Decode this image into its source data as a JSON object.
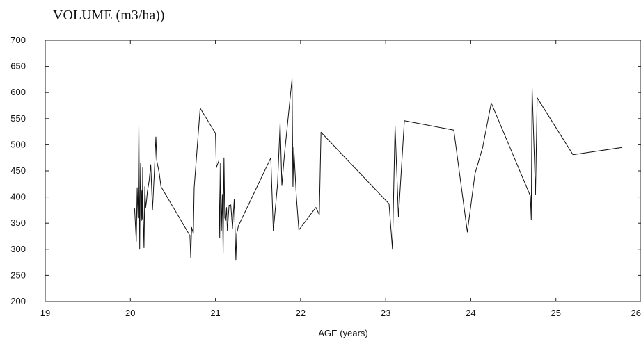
{
  "chart_data": {
    "type": "line",
    "ylabel": "VOLUME  (m3/ha))",
    "xlabel": "AGE (years)",
    "xlim": [
      19,
      26
    ],
    "ylim": [
      200,
      700
    ],
    "xticks": [
      19,
      20,
      21,
      22,
      23,
      24,
      25,
      26
    ],
    "yticks": [
      200,
      250,
      300,
      350,
      400,
      450,
      500,
      550,
      600,
      650,
      700
    ],
    "xtick_labels": [
      "19",
      "20",
      "21",
      "22",
      "23",
      "24",
      "25",
      "26"
    ],
    "ytick_labels": [
      "200",
      "250",
      "300",
      "350",
      "400",
      "450",
      "500",
      "550",
      "600",
      "650",
      "700"
    ],
    "grid": false,
    "series": [
      {
        "color": "#111111",
        "x": [
          20.05,
          20.07,
          20.08,
          20.09,
          20.1,
          20.11,
          20.115,
          20.12,
          20.13,
          20.135,
          20.14,
          20.145,
          20.15,
          20.16,
          20.17,
          20.18,
          20.19,
          20.2,
          20.22,
          20.24,
          20.26,
          20.28,
          20.3,
          20.31,
          20.32,
          20.34,
          20.36,
          20.7,
          20.71,
          20.72,
          20.74,
          20.75,
          20.82,
          21.0,
          21.01,
          21.04,
          21.05,
          21.06,
          21.07,
          21.08,
          21.09,
          21.1,
          21.11,
          21.12,
          21.13,
          21.14,
          21.16,
          21.18,
          21.2,
          21.22,
          21.23,
          21.24,
          21.25,
          21.27,
          21.65,
          21.68,
          21.73,
          21.76,
          21.78,
          21.81,
          21.9,
          21.91,
          21.92,
          21.95,
          21.98,
          22.18,
          22.22,
          22.24,
          23.04,
          23.08,
          23.11,
          23.15,
          23.22,
          23.8,
          23.96,
          24.05,
          24.14,
          24.24,
          24.7,
          24.71,
          24.72,
          24.76,
          24.78,
          25.2,
          25.78
        ],
        "values": [
          378,
          315,
          418,
          360,
          538,
          300,
          400,
          465,
          355,
          412,
          358,
          456,
          375,
          303,
          420,
          380,
          392,
          410,
          430,
          462,
          376,
          440,
          515,
          470,
          462,
          445,
          420,
          326,
          283,
          342,
          330,
          418,
          570,
          522,
          456,
          470,
          322,
          465,
          335,
          405,
          293,
          475,
          360,
          355,
          380,
          335,
          384,
          385,
          340,
          395,
          340,
          280,
          330,
          345,
          475,
          335,
          425,
          542,
          422,
          480,
          626,
          420,
          495,
          403,
          337,
          380,
          366,
          524,
          387,
          300,
          537,
          362,
          546,
          528,
          333,
          445,
          495,
          580,
          402,
          357,
          610,
          405,
          590,
          481,
          495
        ]
      }
    ]
  }
}
